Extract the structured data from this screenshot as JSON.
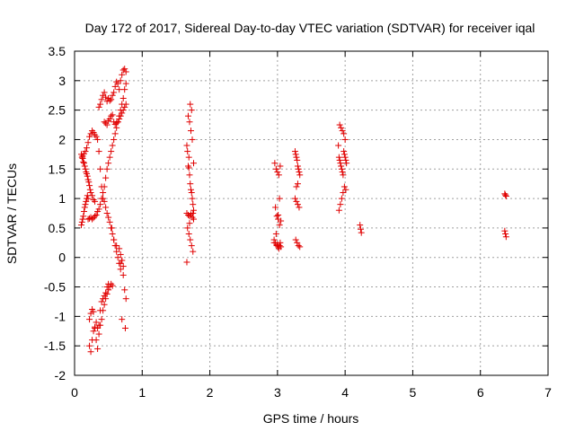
{
  "chart_data": {
    "type": "scatter",
    "title": "Day 172 of 2017, Sidereal Day-to-day VTEC variation (SDTVAR) for receiver iqal",
    "xlabel": "GPS time / hours",
    "ylabel": "SDTVAR / TECUs",
    "xlim": [
      0,
      7
    ],
    "ylim": [
      -2,
      3.5
    ],
    "xticks": [
      "0",
      "1",
      "2",
      "3",
      "4",
      "5",
      "6",
      "7"
    ],
    "yticks": [
      "-2",
      "-1.5",
      "-1",
      "-0.5",
      "0",
      "0.5",
      "1",
      "1.5",
      "2",
      "2.5",
      "3",
      "3.5"
    ],
    "grid": true,
    "marker": "+",
    "color": "#e00000",
    "series": [
      {
        "name": "SDTVAR",
        "x": [
          0.1,
          0.11,
          0.12,
          0.13,
          0.14,
          0.15,
          0.16,
          0.17,
          0.18,
          0.19,
          0.2,
          0.21,
          0.22,
          0.23,
          0.24,
          0.26,
          0.28,
          0.3,
          0.1,
          0.11,
          0.12,
          0.13,
          0.14,
          0.15,
          0.16,
          0.17,
          0.18,
          0.19,
          0.2,
          0.2,
          0.22,
          0.24,
          0.26,
          0.28,
          0.3,
          0.32,
          0.34,
          0.36,
          0.38,
          0.4,
          0.42,
          0.44,
          0.46,
          0.48,
          0.5,
          0.52,
          0.54,
          0.56,
          0.58,
          0.6,
          0.62,
          0.64,
          0.66,
          0.68,
          0.7,
          0.72,
          0.74,
          0.76,
          0.12,
          0.14,
          0.16,
          0.18,
          0.2,
          0.22,
          0.24,
          0.26,
          0.28,
          0.3,
          0.32,
          0.34,
          0.36,
          0.38,
          0.4,
          0.42,
          0.44,
          0.46,
          0.48,
          0.5,
          0.52,
          0.54,
          0.56,
          0.58,
          0.6,
          0.62,
          0.64,
          0.66,
          0.68,
          0.7,
          0.72,
          0.22,
          0.24,
          0.26,
          0.28,
          0.3,
          0.32,
          0.34,
          0.36,
          0.38,
          0.4,
          0.42,
          0.44,
          0.46,
          0.48,
          0.5,
          0.52,
          0.54,
          0.56,
          0.36,
          0.38,
          0.4,
          0.42,
          0.44,
          0.46,
          0.48,
          0.5,
          0.52,
          0.54,
          0.56,
          0.58,
          0.6,
          0.62,
          0.64,
          0.66,
          0.68,
          0.7,
          0.72,
          0.74,
          0.76,
          0.44,
          0.46,
          0.48,
          0.5,
          0.52,
          0.54,
          0.56,
          0.58,
          0.6,
          0.62,
          0.64,
          0.66,
          0.68,
          0.7,
          0.72,
          0.74,
          0.76,
          0.22,
          0.24,
          0.26,
          0.28,
          0.3,
          0.32,
          0.34,
          0.36,
          0.38,
          0.4,
          0.42,
          0.44,
          0.46,
          0.48,
          0.5,
          0.55,
          0.58,
          0.62,
          0.66,
          0.68,
          0.7,
          0.72,
          0.74,
          0.76,
          0.7,
          0.75,
          0.68,
          1.66,
          1.67,
          1.68,
          1.69,
          1.7,
          1.71,
          1.72,
          1.73,
          1.74,
          1.75,
          1.76,
          1.66,
          1.68,
          1.7,
          1.72,
          1.74,
          1.76,
          1.67,
          1.69,
          1.71,
          1.73,
          1.75,
          1.68,
          1.7,
          1.72,
          1.74,
          1.76,
          1.71,
          1.73,
          1.69,
          1.66,
          1.75,
          1.7,
          2.95,
          2.97,
          2.99,
          3.0,
          3.01,
          3.02,
          3.03,
          3.04,
          3.05,
          2.96,
          2.98,
          3.0,
          3.02,
          3.04,
          2.97,
          2.99,
          3.01,
          3.03,
          3.05,
          2.95,
          2.98,
          3.01,
          3.03,
          3.26,
          3.27,
          3.28,
          3.29,
          3.3,
          3.31,
          3.32,
          3.33,
          3.26,
          3.28,
          3.3,
          3.32,
          3.27,
          3.29,
          3.31,
          3.33,
          3.3,
          3.28,
          3.9,
          3.91,
          3.92,
          3.93,
          3.94,
          3.95,
          3.96,
          3.97,
          3.98,
          3.99,
          4.0,
          4.01,
          4.02,
          3.92,
          3.94,
          3.96,
          3.98,
          4.0,
          3.91,
          3.93,
          3.95,
          3.97,
          3.99,
          4.01,
          4.22,
          4.23,
          4.24,
          6.36,
          6.37,
          6.38,
          6.36,
          6.37,
          6.38
        ],
        "y": [
          1.75,
          1.7,
          1.68,
          1.62,
          1.6,
          1.55,
          1.5,
          1.45,
          1.42,
          1.38,
          1.32,
          1.28,
          1.22,
          1.15,
          1.1,
          1.05,
          0.98,
          0.95,
          0.55,
          0.6,
          0.65,
          0.7,
          0.78,
          0.85,
          0.9,
          0.95,
          1.0,
          1.05,
          1.0,
          0.65,
          0.66,
          0.68,
          0.65,
          0.67,
          0.7,
          0.72,
          0.78,
          0.82,
          0.9,
          1.0,
          1.1,
          1.2,
          1.35,
          1.5,
          1.6,
          1.7,
          1.8,
          1.9,
          2.0,
          2.1,
          2.2,
          2.3,
          2.4,
          2.5,
          2.6,
          2.7,
          2.85,
          2.95,
          1.72,
          1.76,
          1.8,
          1.86,
          1.95,
          2.05,
          2.1,
          2.15,
          2.12,
          2.08,
          2.05,
          2.0,
          1.8,
          1.5,
          1.2,
          1.0,
          0.95,
          0.85,
          0.75,
          0.68,
          0.6,
          0.5,
          0.4,
          0.3,
          0.2,
          0.1,
          0.0,
          -0.1,
          -0.2,
          -0.05,
          -0.15,
          -1.05,
          -0.95,
          -0.88,
          -0.92,
          -1.2,
          -1.4,
          -1.55,
          -1.3,
          -1.15,
          -1.05,
          -0.9,
          -0.8,
          -0.7,
          -0.62,
          -0.55,
          -0.5,
          -0.45,
          -0.48,
          2.55,
          2.6,
          2.68,
          2.75,
          2.8,
          2.72,
          2.65,
          2.7,
          2.66,
          2.68,
          2.75,
          2.8,
          2.9,
          2.98,
          2.95,
          2.85,
          3.0,
          3.1,
          3.18,
          3.2,
          3.15,
          2.3,
          2.28,
          2.25,
          2.32,
          2.35,
          2.4,
          2.42,
          2.3,
          2.26,
          2.28,
          2.3,
          2.35,
          2.4,
          2.45,
          2.5,
          2.55,
          2.6,
          -1.5,
          -1.6,
          -1.4,
          -1.25,
          -1.18,
          -1.1,
          -1.2,
          -1.15,
          -0.9,
          -0.75,
          -0.7,
          -0.65,
          -0.6,
          -0.5,
          -0.45,
          0.5,
          0.3,
          0.2,
          0.15,
          0.05,
          -0.05,
          -0.3,
          -0.55,
          -0.7,
          -1.05,
          -1.2,
          -0.1,
          1.9,
          1.8,
          1.55,
          1.52,
          1.4,
          1.25,
          1.15,
          1.1,
          1.0,
          0.9,
          0.8,
          0.75,
          0.72,
          0.7,
          0.73,
          0.68,
          0.65,
          0.5,
          0.4,
          0.3,
          0.2,
          0.1,
          2.4,
          2.3,
          2.15,
          2.0,
          1.6,
          2.6,
          2.5,
          1.7,
          -0.08,
          0.75,
          0.58,
          0.3,
          0.25,
          0.2,
          0.22,
          0.18,
          0.15,
          0.2,
          0.25,
          0.18,
          1.6,
          1.5,
          1.45,
          1.4,
          1.55,
          0.85,
          0.7,
          0.65,
          0.55,
          0.62,
          0.25,
          0.4,
          0.72,
          1.0,
          1.8,
          1.75,
          1.7,
          1.65,
          1.55,
          1.5,
          1.45,
          1.4,
          1.0,
          0.95,
          0.9,
          0.85,
          0.3,
          0.25,
          0.2,
          0.18,
          1.25,
          1.2,
          1.9,
          1.7,
          1.65,
          1.6,
          1.55,
          1.5,
          1.45,
          1.4,
          1.8,
          1.75,
          1.7,
          1.65,
          1.6,
          2.25,
          2.2,
          2.15,
          2.1,
          2.0,
          0.8,
          0.9,
          1.0,
          1.1,
          1.2,
          1.15,
          0.55,
          0.48,
          0.42,
          1.08,
          1.06,
          1.04,
          0.45,
          0.4,
          0.35
        ]
      }
    ]
  }
}
